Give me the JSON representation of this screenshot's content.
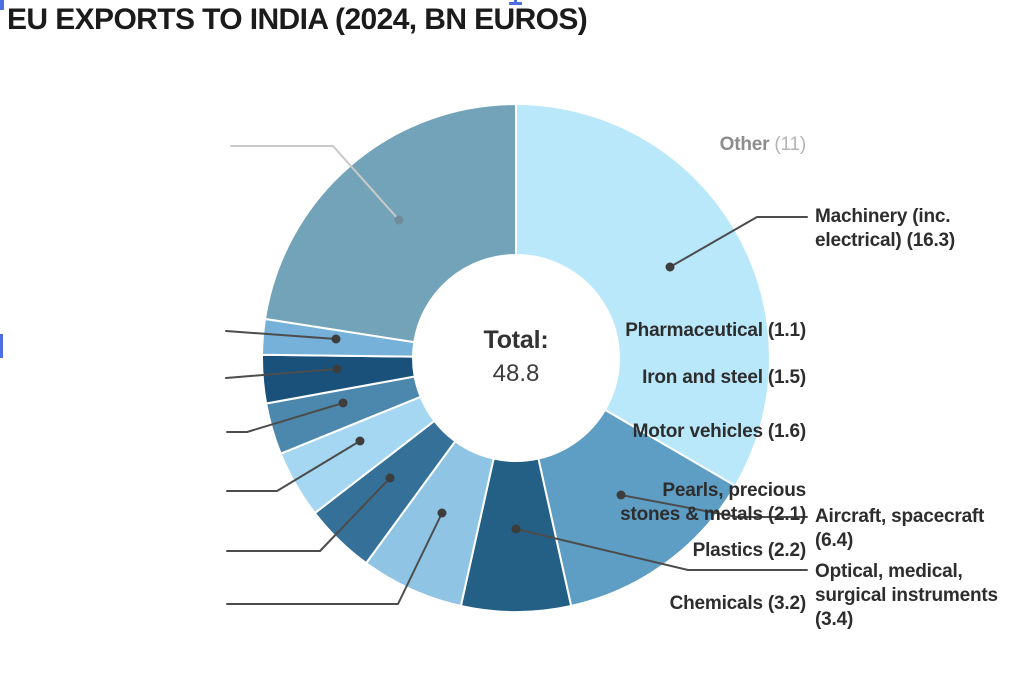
{
  "title": "EU EXPORTS TO INDIA (2024, BN EUROS)",
  "center": {
    "heading": "Total:",
    "value": "48.8"
  },
  "chart_data": {
    "type": "pie",
    "donut": true,
    "title": "EU EXPORTS TO INDIA (2024, BN EUROS)",
    "total": 48.8,
    "units": "bn euros",
    "start_angle_deg": 0,
    "direction": "clockwise",
    "legend_position": "callout-labels",
    "slices": [
      {
        "id": "machinery",
        "label": "Machinery (inc. electrical)",
        "value": 16.3,
        "color": "#b9e8fb",
        "label_lines": [
          "Machinery (inc.",
          "electrical) (16.3)"
        ]
      },
      {
        "id": "aircraft",
        "label": "Aircraft, spacecraft",
        "value": 6.4,
        "color": "#5e9ec4",
        "label_lines": [
          "Aircraft, spacecraft",
          "(6.4)"
        ]
      },
      {
        "id": "optical",
        "label": "Optical, medical, surgical instruments",
        "value": 3.4,
        "color": "#246086",
        "label_lines": [
          "Optical, medical,",
          "surgical instruments",
          "(3.4)"
        ]
      },
      {
        "id": "chemicals",
        "label": "Chemicals",
        "value": 3.2,
        "color": "#8fc4e4",
        "label_lines": [
          "Chemicals (3.2)"
        ]
      },
      {
        "id": "plastics",
        "label": "Plastics",
        "value": 2.2,
        "color": "#357098",
        "label_lines": [
          "Plastics (2.2)"
        ]
      },
      {
        "id": "pearls",
        "label": "Pearls, precious stones & metals",
        "value": 2.1,
        "color": "#a5d7f2",
        "label_lines": [
          "Pearls, precious",
          "stones & metals (2.1)"
        ]
      },
      {
        "id": "motor",
        "label": "Motor vehicles",
        "value": 1.6,
        "color": "#4c88ae",
        "label_lines": [
          "Motor vehicles (1.6)"
        ]
      },
      {
        "id": "iron",
        "label": "Iron and steel",
        "value": 1.5,
        "color": "#19517a",
        "label_lines": [
          "Iron and steel (1.5)"
        ]
      },
      {
        "id": "pharma",
        "label": "Pharmaceutical",
        "value": 1.1,
        "color": "#76b1d9",
        "label_lines": [
          "Pharmaceutical (1.1)"
        ]
      },
      {
        "id": "other",
        "label": "Other",
        "value": 11,
        "color": "#72a3b9",
        "label_lines": [
          "Other (11)"
        ],
        "muted": true,
        "name_text": "Other",
        "value_text": " (11)"
      }
    ],
    "colors": {
      "leader_line": "#4c4c4c",
      "leader_line_muted": "#c9c9c9",
      "dot": "#3d3d3d",
      "dot_muted": "#6f8b99",
      "slice_gap": "#ffffff"
    }
  },
  "artifacts": {
    "color": "#4e6fe3"
  }
}
